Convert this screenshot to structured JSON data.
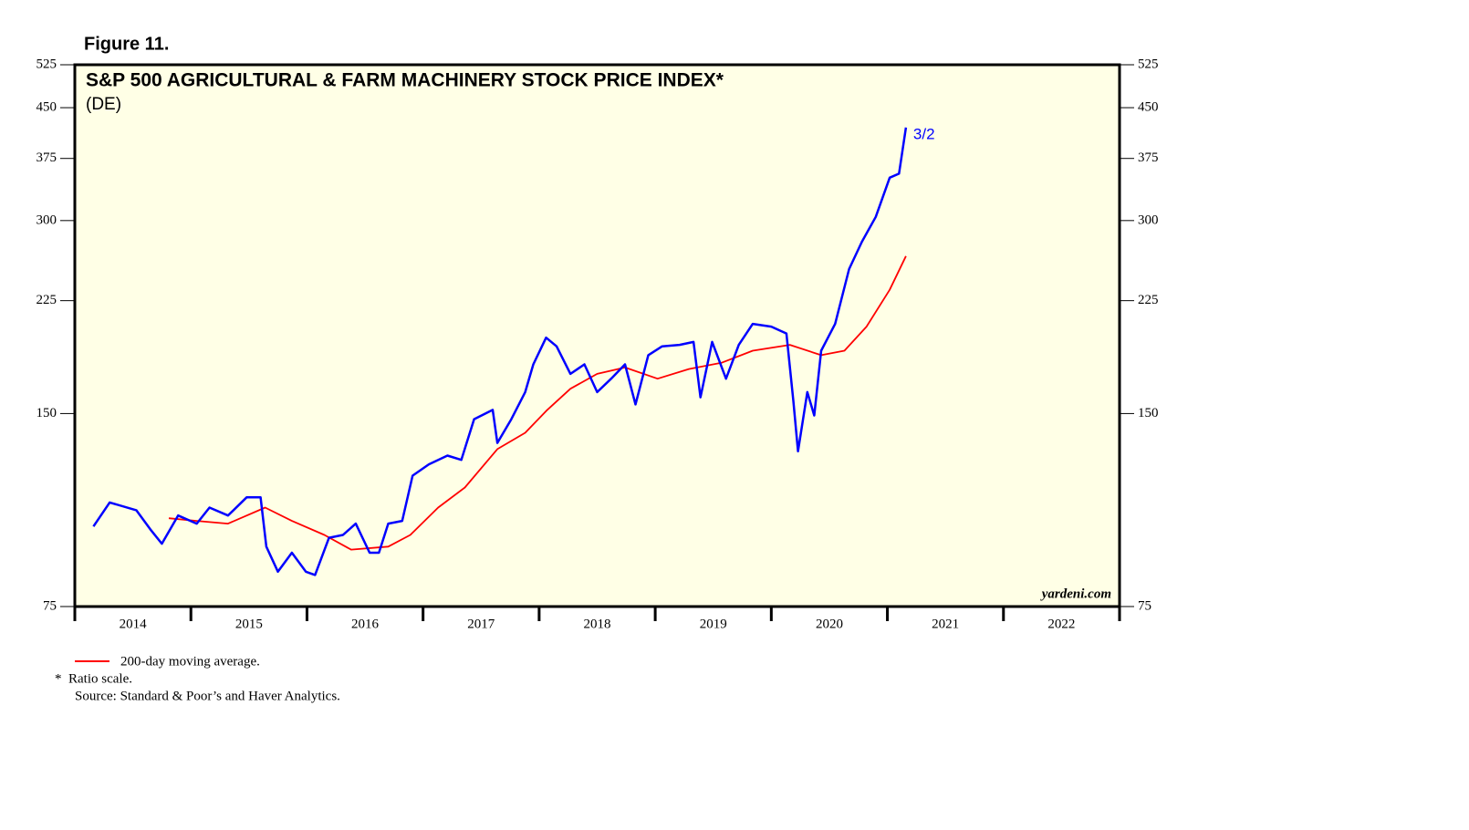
{
  "chart_data": {
    "type": "line",
    "figure_label": "Figure 11.",
    "title": "S&P 500 AGRICULTURAL & FARM MACHINERY STOCK PRICE INDEX*",
    "subtitle": "(DE)",
    "watermark": "yardeni.com",
    "end_label": "3/2",
    "footnotes": [
      "*  Ratio scale.",
      "Source: Standard & Poor’s and Haver Analytics."
    ],
    "log_scale": true,
    "ylim": [
      75,
      525
    ],
    "yticks": [
      75,
      150,
      225,
      300,
      375,
      450,
      525
    ],
    "xlim": [
      2014,
      2023
    ],
    "xticks": [
      2014,
      2015,
      2016,
      2017,
      2018,
      2019,
      2020,
      2021,
      2022,
      2023
    ],
    "year_labels": [
      2014,
      2015,
      2016,
      2017,
      2018,
      2019,
      2020,
      2021,
      2022
    ],
    "legend": "bottom-left",
    "series": [
      {
        "color": "#0000ff",
        "x": [
          2014.16,
          2014.3,
          2014.53,
          2014.65,
          2014.75,
          2014.89,
          2015.05,
          2015.16,
          2015.32,
          2015.48,
          2015.6,
          2015.65,
          2015.75,
          2015.87,
          2015.99,
          2016.07,
          2016.19,
          2016.31,
          2016.42,
          2016.54,
          2016.62,
          2016.7,
          2016.82,
          2016.91,
          2017.05,
          2017.21,
          2017.33,
          2017.44,
          2017.6,
          2017.64,
          2017.76,
          2017.88,
          2017.95,
          2018.06,
          2018.15,
          2018.27,
          2018.39,
          2018.5,
          2018.62,
          2018.74,
          2018.83,
          2018.94,
          2019.06,
          2019.21,
          2019.33,
          2019.39,
          2019.49,
          2019.61,
          2019.72,
          2019.84,
          2020.0,
          2020.13,
          2020.19,
          2020.23,
          2020.31,
          2020.37,
          2020.43,
          2020.55,
          2020.67,
          2020.78,
          2020.9,
          2021.02,
          2021.1,
          2021.16
        ],
        "values": [
          100,
          109,
          106,
          99,
          94,
          104,
          101,
          107,
          104,
          111,
          111,
          93,
          85,
          91,
          85,
          84,
          96,
          97,
          101,
          91,
          91,
          101,
          102,
          120,
          125,
          129,
          127,
          147,
          152,
          135,
          147,
          162,
          179,
          197,
          191,
          173,
          179,
          162,
          170,
          179,
          155,
          185,
          191,
          192,
          194,
          159,
          194,
          170,
          192,
          207,
          205,
          200,
          157,
          131,
          162,
          149,
          188,
          207,
          252,
          278,
          304,
          350,
          355,
          419
        ]
      },
      {
        "name": "200-day moving average.",
        "color": "#ff0000",
        "x": [
          2014.81,
          2015.05,
          2015.32,
          2015.64,
          2015.87,
          2016.15,
          2016.38,
          2016.7,
          2016.89,
          2017.13,
          2017.36,
          2017.64,
          2017.88,
          2018.07,
          2018.27,
          2018.5,
          2018.74,
          2019.02,
          2019.29,
          2019.57,
          2019.84,
          2020.16,
          2020.43,
          2020.63,
          2020.82,
          2021.02,
          2021.16
        ],
        "values": [
          103,
          102,
          101,
          107,
          102,
          97,
          92,
          93,
          97,
          107,
          115,
          132,
          140,
          152,
          164,
          173,
          177,
          170,
          176,
          180,
          188,
          192,
          185,
          188,
          205,
          234,
          264
        ]
      }
    ]
  }
}
